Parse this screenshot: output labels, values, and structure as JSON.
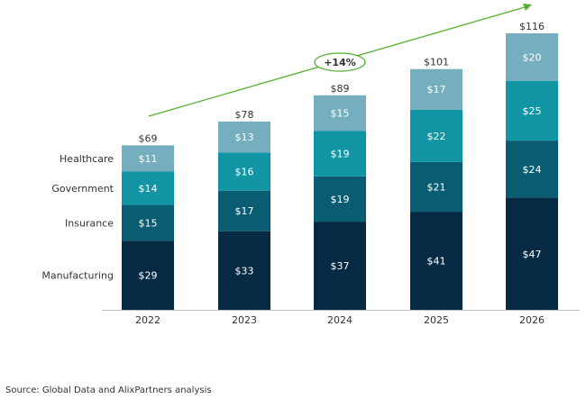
{
  "chart_data": {
    "type": "bar",
    "stacked": true,
    "categories": [
      "2022",
      "2023",
      "2024",
      "2025",
      "2026"
    ],
    "series": [
      {
        "name": "Manufacturing",
        "values": [
          29,
          33,
          37,
          41,
          47
        ],
        "labels": [
          "$29",
          "$33",
          "$37",
          "$41",
          "$47"
        ],
        "color": "#062a43"
      },
      {
        "name": "Insurance",
        "values": [
          15,
          17,
          19,
          21,
          24
        ],
        "labels": [
          "$15",
          "$17",
          "$19",
          "$21",
          "$24"
        ],
        "color": "#0a5c73"
      },
      {
        "name": "Government",
        "values": [
          14,
          16,
          19,
          22,
          25
        ],
        "labels": [
          "$14",
          "$16",
          "$19",
          "$22",
          "$25"
        ],
        "color": "#1195a5"
      },
      {
        "name": "Healthcare",
        "values": [
          11,
          13,
          15,
          17,
          20
        ],
        "labels": [
          "$11",
          "$13",
          "$15",
          "$17",
          "$20"
        ],
        "color": "#74aebf"
      }
    ],
    "totals": [
      69,
      78,
      89,
      101,
      116
    ],
    "total_labels": [
      "$69",
      "$78",
      "$89",
      "$101",
      "$116"
    ],
    "growth_annotation": "+14%",
    "growth_color": "#56b030",
    "ylim": [
      0,
      116
    ],
    "grid": false,
    "legend": "left"
  },
  "source_note": "Source: Global Data and AlixPartners analysis"
}
